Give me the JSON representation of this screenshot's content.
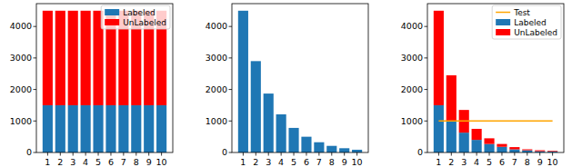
{
  "chart_data": [
    {
      "type": "bar",
      "stacked": true,
      "legend": "upper right",
      "categories": [
        "1",
        "2",
        "3",
        "4",
        "5",
        "6",
        "7",
        "8",
        "9",
        "10"
      ],
      "series": [
        {
          "name": "Labeled",
          "color": "#1f77b4",
          "values": [
            1500,
            1500,
            1500,
            1500,
            1500,
            1500,
            1500,
            1500,
            1500,
            1500
          ]
        },
        {
          "name": "UnLabeled",
          "color": "#ff0000",
          "values": [
            3000,
            3000,
            3000,
            3000,
            3000,
            3000,
            3000,
            3000,
            3000,
            3000
          ]
        }
      ],
      "ylim": [
        0,
        4725
      ],
      "yticks": [
        0,
        1000,
        2000,
        3000,
        4000
      ]
    },
    {
      "type": "bar",
      "categories": [
        "1",
        "2",
        "3",
        "4",
        "5",
        "6",
        "7",
        "8",
        "9",
        "10"
      ],
      "values": [
        4500,
        2900,
        1870,
        1210,
        780,
        500,
        325,
        210,
        135,
        87
      ],
      "color": "#1f77b4",
      "ylim": [
        0,
        4725
      ],
      "yticks": [
        0,
        1000,
        2000,
        3000,
        4000
      ]
    },
    {
      "type": "bar",
      "stacked": true,
      "legend": "upper right",
      "categories": [
        "1",
        "2",
        "3",
        "4",
        "5",
        "6",
        "7",
        "8",
        "9",
        "10"
      ],
      "series": [
        {
          "name": "Test",
          "type": "line",
          "color": "#ffa500",
          "values": [
            1000,
            1000,
            1000,
            1000,
            1000,
            1000,
            1000,
            1000,
            1000,
            1000
          ]
        },
        {
          "name": "Labeled",
          "color": "#1f77b4",
          "values": [
            1500,
            1000,
            630,
            400,
            270,
            180,
            100,
            70,
            40,
            30
          ]
        },
        {
          "name": "UnLabeled",
          "color": "#ff0000",
          "values": [
            3000,
            1450,
            720,
            350,
            180,
            90,
            70,
            30,
            30,
            20
          ]
        }
      ],
      "ylim": [
        0,
        4725
      ],
      "yticks": [
        0,
        1000,
        2000,
        3000,
        4000
      ]
    }
  ]
}
